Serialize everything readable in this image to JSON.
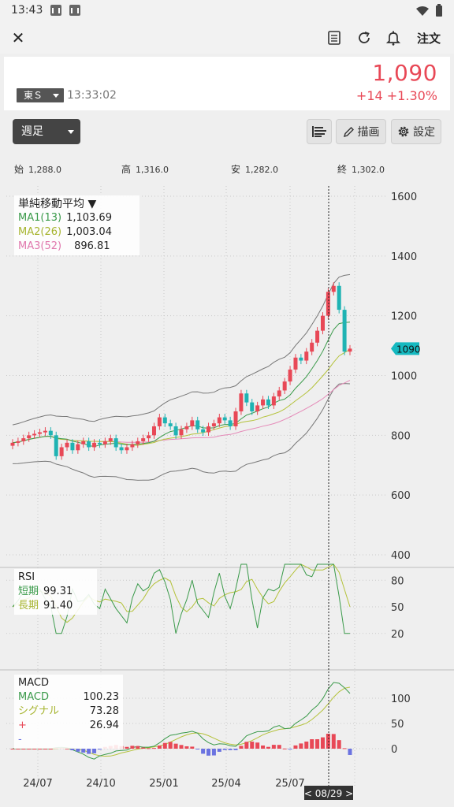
{
  "status": {
    "time": "13:43"
  },
  "topbar": {
    "close": "✕",
    "order": "注文"
  },
  "quote": {
    "market": "東Ｓ",
    "time": "13:33:02",
    "price": "1,090",
    "change": "+14",
    "change_pct": "+1.30%"
  },
  "controls": {
    "period": "週足",
    "draw": "描画",
    "settings": "設定"
  },
  "ohlc": {
    "open_label": "始",
    "open": "1,288.0",
    "high_label": "高",
    "high": "1,316.0",
    "low_label": "安",
    "low": "1,282.0",
    "close_label": "終",
    "close": "1,302.0"
  },
  "colors": {
    "up": "#e84856",
    "down": "#1fb3b3",
    "ma1": "#3a9a4a",
    "ma2": "#b4c23a",
    "ma3": "#e58ab8",
    "price_tag": "#15b9c0"
  },
  "legend": {
    "title": "単純移動平均 ▼",
    "ma1_label": "MA1(13)",
    "ma1_value": "1,103.69",
    "ma2_label": "MA2(26)",
    "ma2_value": "1,003.04",
    "ma3_label": "MA3(52)",
    "ma3_value": "896.81"
  },
  "rsi_legend": {
    "title": "RSI",
    "short_label": "短期",
    "short_value": "99.31",
    "long_label": "長期",
    "long_value": "91.40"
  },
  "macd_legend": {
    "title": "MACD",
    "macd_label": "MACD",
    "macd_value": "100.23",
    "signal_label": "シグナル",
    "signal_value": "73.28",
    "plus_label": "+",
    "plus_value": "26.94",
    "minus_label": "-"
  },
  "crosshair_label": "< 08/29 >",
  "current_price_tag": "1090",
  "chart_data": {
    "type": "candlestick",
    "price_axis": {
      "ticks": [
        "1600",
        "1400",
        "1200",
        "1000",
        "800",
        "600",
        "400"
      ],
      "range": [
        400,
        1600
      ]
    },
    "rsi_axis": {
      "ticks": [
        "80",
        "50",
        "20"
      ]
    },
    "macd_axis": {
      "ticks": [
        "100",
        "50",
        "0"
      ]
    },
    "x_ticks": [
      "24/07",
      "24/10",
      "25/01",
      "25/04",
      "25/07"
    ],
    "approx_closes": [
      775,
      780,
      790,
      800,
      805,
      810,
      815,
      800,
      730,
      760,
      775,
      750,
      770,
      780,
      760,
      775,
      770,
      780,
      790,
      760,
      750,
      760,
      770,
      780,
      790,
      800,
      830,
      860,
      840,
      830,
      800,
      820,
      830,
      850,
      820,
      810,
      830,
      840,
      860,
      850,
      830,
      880,
      940,
      910,
      880,
      900,
      920,
      900,
      930,
      950,
      980,
      1020,
      1060,
      1050,
      1080,
      1110,
      1150,
      1200,
      1280,
      1300,
      1220,
      1080,
      1090
    ]
  }
}
